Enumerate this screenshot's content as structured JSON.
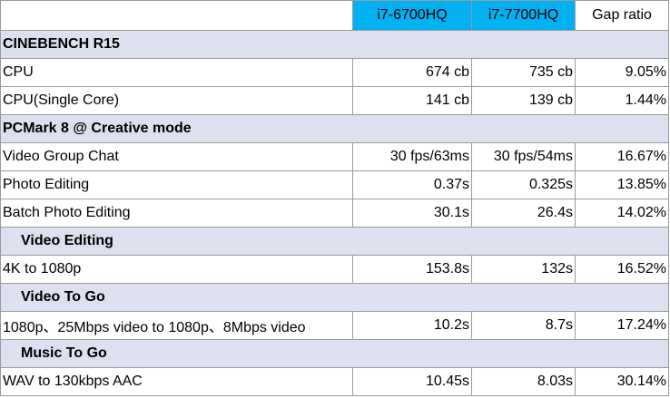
{
  "table": {
    "columns": [
      "i7-6700HQ",
      "i7-7700HQ",
      "Gap ratio"
    ],
    "sections": [
      {
        "title": "CINEBENCH R15",
        "rows": [
          [
            "CPU",
            "674 cb",
            "735 cb",
            "9.05%"
          ],
          [
            "CPU(Single Core)",
            "141 cb",
            "139 cb",
            "1.44%"
          ]
        ]
      },
      {
        "title": "PCMark 8 @ Creative mode",
        "rows": [
          [
            "Video Group Chat",
            "30 fps/63ms",
            "30 fps/54ms",
            "16.67%"
          ],
          [
            "Photo Editing",
            "0.37s",
            "0.325s",
            "13.85%"
          ],
          [
            "Batch Photo Editing",
            "30.1s",
            "26.4s",
            "14.02%"
          ]
        ],
        "subsections": [
          {
            "title": "Video Editing",
            "rows": [
              [
                "4K to 1080p",
                "153.8s",
                "132s",
                "16.52%"
              ]
            ]
          },
          {
            "title": "Video To Go",
            "rows": [
              [
                "1080p、25Mbps video to 1080p、8Mbps video",
                "10.2s",
                "8.7s",
                "17.24%"
              ]
            ]
          },
          {
            "title": "Music To Go",
            "rows": [
              [
                "WAV to 130kbps AAC",
                "10.45s",
                "8.03s",
                "30.14%"
              ]
            ]
          }
        ]
      }
    ]
  }
}
